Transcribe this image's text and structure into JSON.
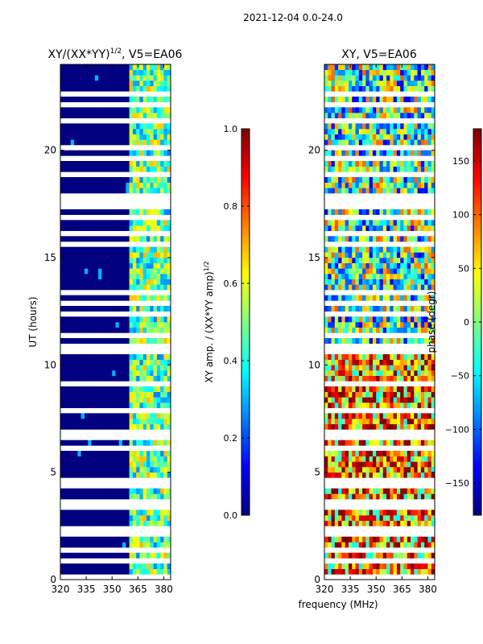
{
  "chart_data": {
    "type": "heatmap",
    "suptitle": "2021-12-04 0.0-24.0",
    "shared_xlabel": "frequency (MHz)",
    "panels": [
      {
        "title_main": "XY/(XX*YY)",
        "title_sup": "1/2",
        "title_tail": ", V5=EA06",
        "ylabel": "UT (hours)",
        "xlim": [
          320,
          384
        ],
        "ylim": [
          0,
          24
        ],
        "xticks": [
          320,
          335,
          350,
          365,
          380
        ],
        "yticks": [
          0,
          5,
          10,
          15,
          20
        ],
        "colorbar": {
          "label_main": "XY amp. / (XX*YY amp)",
          "label_sup": "1/2",
          "range": [
            0.0,
            1.0
          ],
          "ticks": [
            "0.0",
            "0.2",
            "0.4",
            "0.6",
            "0.8",
            "1.0"
          ],
          "tick_values": [
            0.0,
            0.2,
            0.4,
            0.6,
            0.8,
            1.0
          ]
        }
      },
      {
        "title": "XY, V5=EA06",
        "xlim": [
          320,
          384
        ],
        "ylim": [
          0,
          24
        ],
        "xticks": [
          320,
          335,
          350,
          365,
          380
        ],
        "yticks": [
          0,
          5,
          10,
          15,
          20
        ],
        "colorbar": {
          "label": "phase (degr)",
          "range": [
            -180,
            180
          ],
          "ticks": [
            "150",
            "100",
            "50",
            "0",
            "−50",
            "−100",
            "−150"
          ],
          "tick_values": [
            150,
            100,
            50,
            0,
            -50,
            -100,
            -150
          ]
        }
      }
    ],
    "flagged_hours": [
      0.05,
      0.5,
      0.95,
      1.3,
      1.75,
      2.1,
      2.25,
      2.45,
      3.3,
      3.6,
      4.4,
      4.55,
      6.2,
      6.55,
      6.8,
      7.9,
      9.1,
      10.6,
      10.8,
      11.3,
      12.4,
      12.9,
      13.3,
      14.0,
      15.7,
      16.2,
      16.9,
      17.3,
      17.6,
      17.9,
      18.9,
      19.6,
      20.2,
      20.5,
      21.0,
      21.4,
      22.2,
      22.7,
      23.5
    ]
  }
}
